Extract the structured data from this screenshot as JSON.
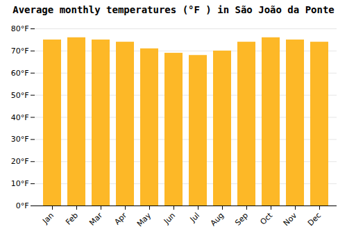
{
  "chart_data": {
    "type": "bar",
    "title": "Average monthly temperatures (°F ) in São João da Ponte",
    "categories": [
      "Jan",
      "Feb",
      "Mar",
      "Apr",
      "May",
      "Jun",
      "Jul",
      "Aug",
      "Sep",
      "Oct",
      "Nov",
      "Dec"
    ],
    "values": [
      75,
      76,
      75,
      74,
      71,
      69,
      68,
      70,
      74,
      76,
      75,
      74
    ],
    "color": "#FDB827",
    "ylim": [
      0,
      80
    ],
    "yticks": [
      {
        "value": 0,
        "label": "0°F"
      },
      {
        "value": 10,
        "label": "10°F"
      },
      {
        "value": 20,
        "label": "20°F"
      },
      {
        "value": 30,
        "label": "30°F"
      },
      {
        "value": 40,
        "label": "40°F"
      },
      {
        "value": 50,
        "label": "50°F"
      },
      {
        "value": 60,
        "label": "60°F"
      },
      {
        "value": 70,
        "label": "70°F"
      },
      {
        "value": 80,
        "label": "80°F"
      }
    ],
    "grid": true
  }
}
